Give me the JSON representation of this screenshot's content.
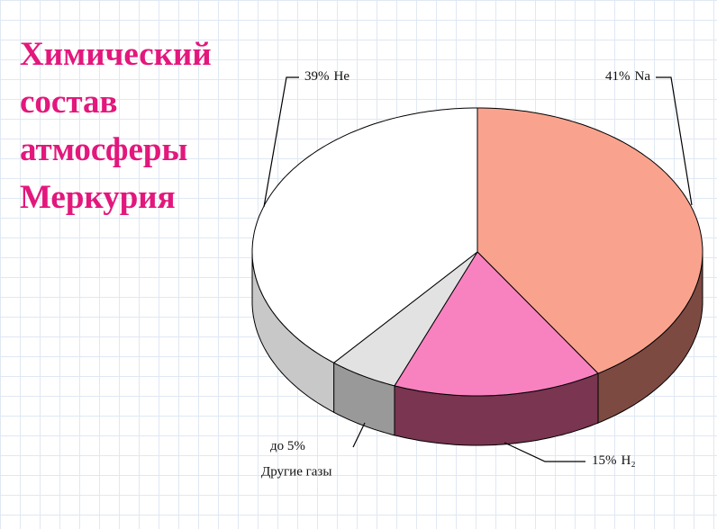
{
  "chart_data": {
    "type": "pie3d",
    "title": "Химический состав атмосферы Меркурия",
    "categories": [
      "Na",
      "H₂",
      "Другие газы",
      "He"
    ],
    "values": [
      41,
      15,
      5,
      39
    ],
    "value_labels": [
      "41%",
      "15%",
      "до 5%",
      "39%"
    ],
    "colors": [
      "#f9a38e",
      "#f882c0",
      "#e2e2e2",
      "#ffffff"
    ],
    "side_colors": [
      "#7d4a42",
      "#7a3550",
      "#999999",
      "#c8c8c8"
    ]
  }
}
